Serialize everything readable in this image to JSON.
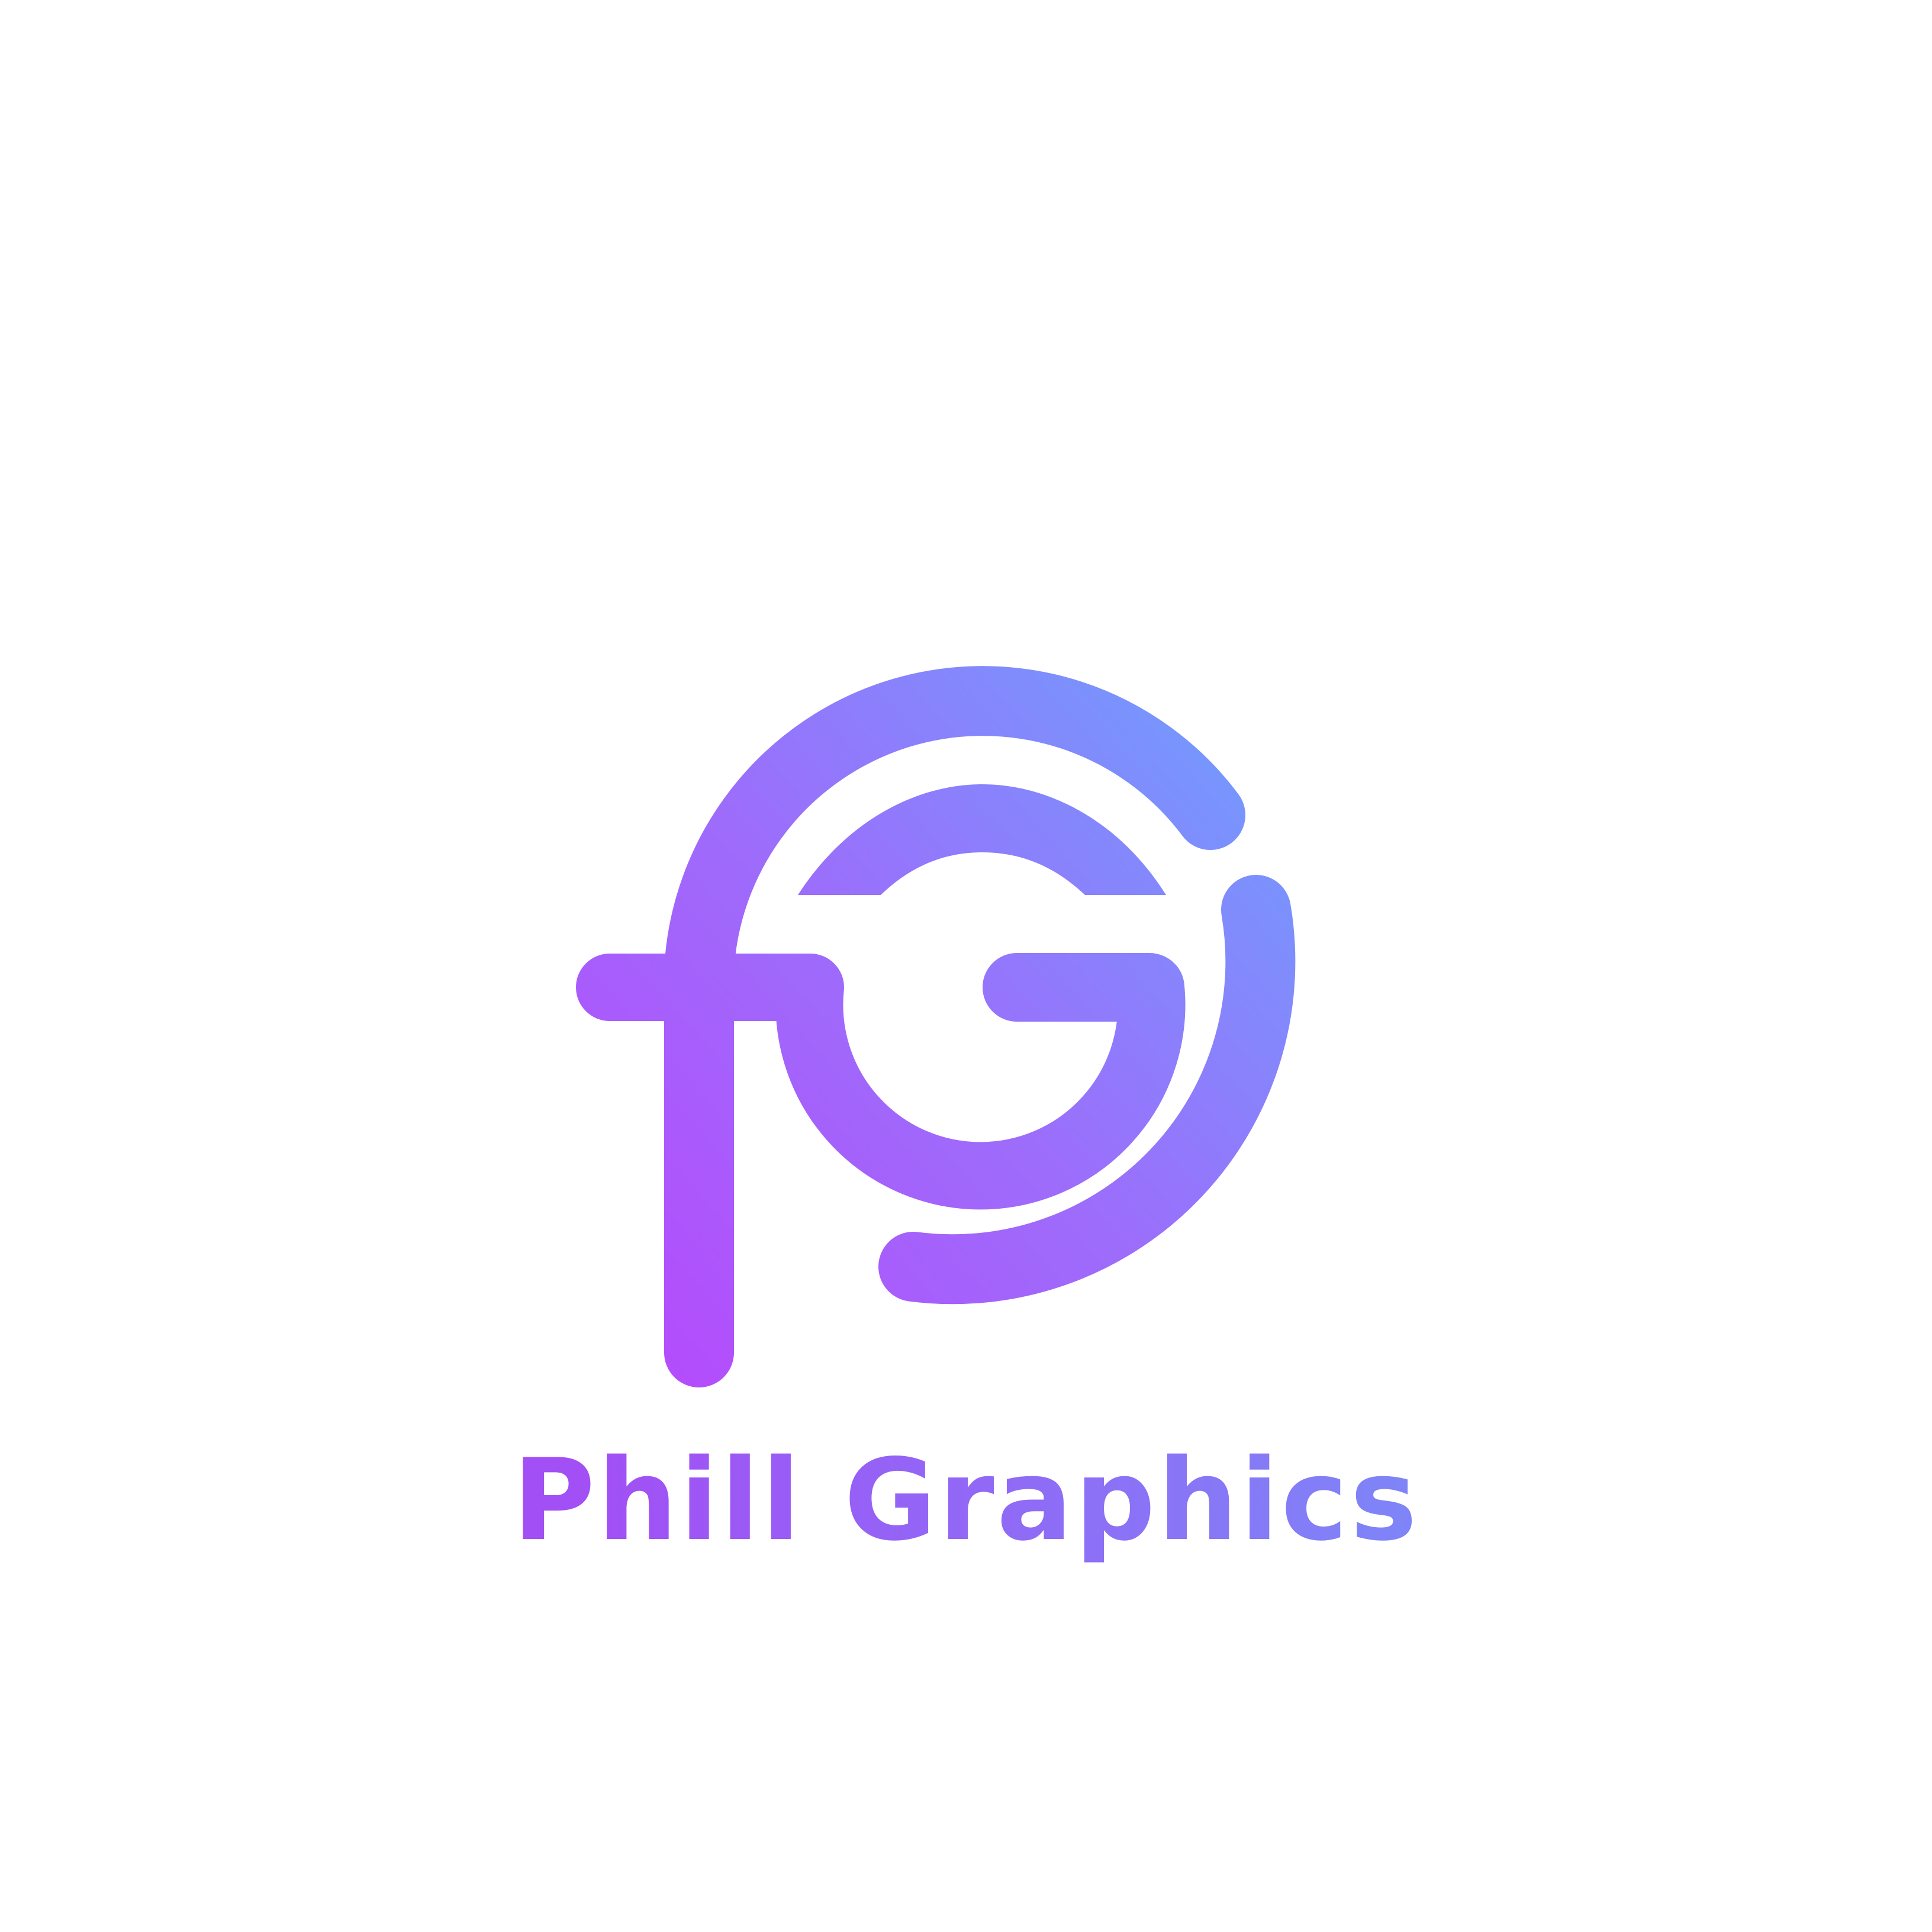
{
  "brand": {
    "name": "Phill Graphics",
    "monogram": "fG"
  },
  "colors": {
    "background": "#ffffff",
    "gradient_start": "#b44cfc",
    "gradient_mid": "#9d6cfb",
    "gradient_end": "#7697fd"
  },
  "icons": {
    "logo": "fg-monogram-icon"
  }
}
